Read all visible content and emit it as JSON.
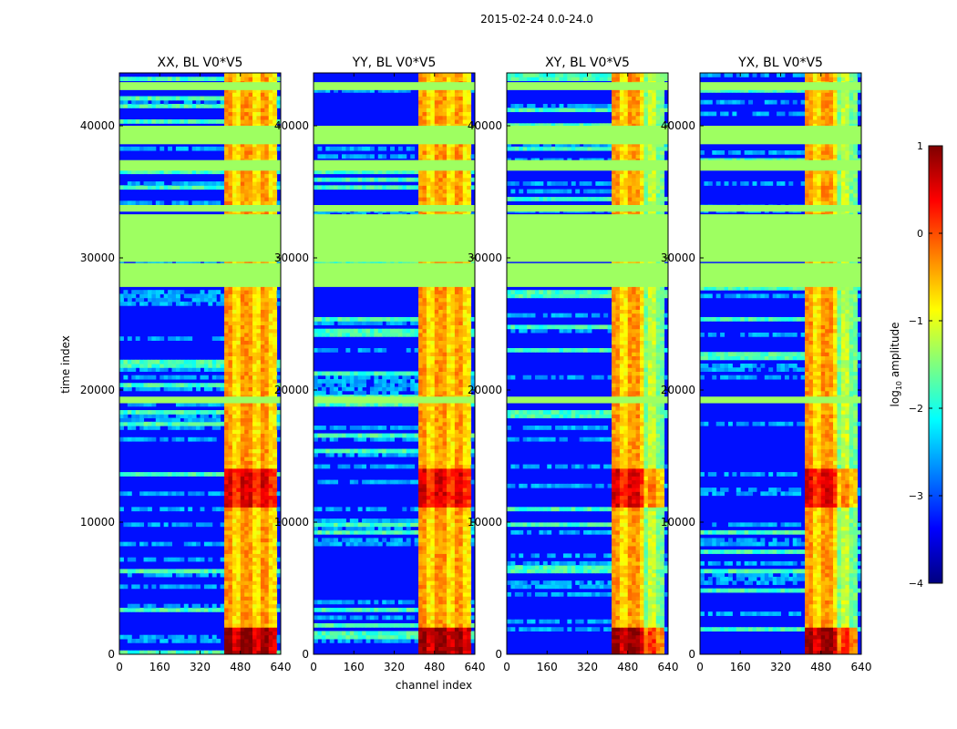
{
  "chart_data": {
    "type": "heatmap",
    "suptitle": "2015-02-24 0.0-24.0",
    "xlabel": "channel index",
    "ylabel": "time index",
    "xlim": [
      0,
      640
    ],
    "ylim": [
      0,
      44000
    ],
    "xticks": [
      0,
      160,
      320,
      480,
      640
    ],
    "yticks": [
      0,
      10000,
      20000,
      30000,
      40000
    ],
    "panels": [
      {
        "title": "XX, BL V0*V5",
        "polarization": "XX"
      },
      {
        "title": "YY, BL V0*V5",
        "polarization": "YY"
      },
      {
        "title": "XY, BL V0*V5",
        "polarization": "XY"
      },
      {
        "title": "YX, BL V0*V5",
        "polarization": "YX"
      }
    ],
    "flagged_time_bands": [
      [
        19000,
        19500
      ],
      [
        27800,
        29600
      ],
      [
        29700,
        33300
      ],
      [
        33500,
        34000
      ],
      [
        36600,
        37400
      ],
      [
        38600,
        40000
      ],
      [
        42700,
        43300
      ]
    ],
    "band_active_channels": [
      405,
      620
    ],
    "colorbar": {
      "label": "log10 amplitude",
      "label_base": "log",
      "label_sub": "10",
      "label_rest": " amplitude",
      "range": [
        -4,
        1
      ],
      "ticks": [
        "1",
        "0",
        "−1",
        "−2",
        "−3",
        "−4"
      ],
      "colormap": "jet",
      "stops": [
        "#00007f",
        "#0000ff",
        "#007fff",
        "#00ffff",
        "#7fff7f",
        "#ffff00",
        "#ff7f00",
        "#ff0000",
        "#7f0000"
      ]
    }
  }
}
